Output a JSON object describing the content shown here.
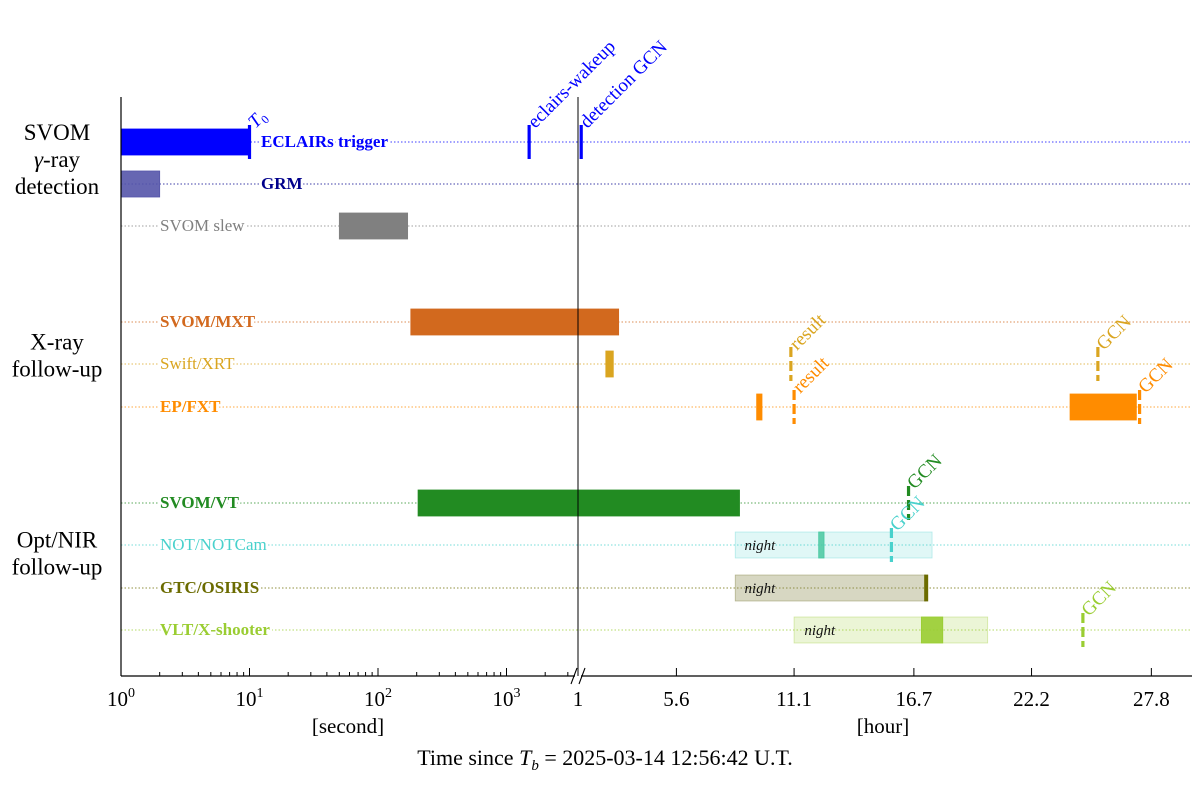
{
  "chart_data": {
    "type": "timeline",
    "xlabel": "Time since T_b = 2025-03-14 12:56:42 U.T.",
    "xlabel_parts": {
      "prefix": "Time since ",
      "symbol": "T",
      "subscript": "b",
      "suffix": " = 2025-03-14 12:56:42 U.T."
    },
    "unit_labels": {
      "seconds": "[second]",
      "hours": "[hour]"
    },
    "axis": {
      "seconds_scale": "log",
      "seconds_range": [
        1,
        3600
      ],
      "seconds_ticks": [
        {
          "value": 1,
          "base": "10",
          "exp": "0"
        },
        {
          "value": 10,
          "base": "10",
          "exp": "1"
        },
        {
          "value": 100,
          "base": "10",
          "exp": "2"
        },
        {
          "value": 1000,
          "base": "10",
          "exp": "3"
        }
      ],
      "hours_scale": "linear",
      "hours_range": [
        1,
        29.7
      ],
      "hours_ticks": [
        {
          "value": 1,
          "label": "1"
        },
        {
          "value": 5.6,
          "label": "5.6"
        },
        {
          "value": 11.1,
          "label": "11.1"
        },
        {
          "value": 16.7,
          "label": "16.7"
        },
        {
          "value": 22.2,
          "label": "22.2"
        },
        {
          "value": 27.8,
          "label": "27.8"
        }
      ]
    },
    "groups": [
      {
        "name": "svom",
        "lines": [
          "SVOM",
          "γ-ray",
          "detection"
        ]
      },
      {
        "name": "xray",
        "lines": [
          "X-ray",
          "follow-up"
        ]
      },
      {
        "name": "optnir",
        "lines": [
          "Opt/NIR",
          "follow-up"
        ]
      }
    ],
    "rows": [
      {
        "name": "eclairs",
        "label": "ECLAIRs trigger",
        "color": "#0000ff"
      },
      {
        "name": "grm",
        "label": "GRM",
        "color": "#00008b"
      },
      {
        "name": "svom-slew",
        "label": "SVOM slew",
        "color": "#808080"
      },
      {
        "name": "svom-mxt",
        "label": "SVOM/MXT",
        "color": "#d2691e"
      },
      {
        "name": "swift-xrt",
        "label": "Swift/XRT",
        "color": "#daa520"
      },
      {
        "name": "ep-fxt",
        "label": "EP/FXT",
        "color": "#ff8c00"
      },
      {
        "name": "svom-vt",
        "label": "SVOM/VT",
        "color": "#228b22"
      },
      {
        "name": "not-notcam",
        "label": "NOT/NOTCam",
        "color": "#48d1cc"
      },
      {
        "name": "gtc-osiris",
        "label": "GTC/OSIRIS",
        "color": "#6b6b00"
      },
      {
        "name": "vlt-xshooter",
        "label": "VLT/X-shooter",
        "color": "#9acd32"
      }
    ],
    "bars": [
      {
        "row": "eclairs",
        "start": {
          "s": 1
        },
        "end": {
          "s": 10
        },
        "color": "#0000ff",
        "opacity": 1
      },
      {
        "row": "grm",
        "start": {
          "s": 1
        },
        "end": {
          "s": 2
        },
        "color": "#5555aa",
        "opacity": 0.9
      },
      {
        "row": "svom-slew",
        "start": {
          "s": 50
        },
        "end": {
          "s": 170
        },
        "color": "#808080",
        "opacity": 1
      },
      {
        "row": "svom-mxt",
        "start": {
          "s": 180
        },
        "end": {
          "h": 2.9
        },
        "color": "#d2691e",
        "opacity": 1
      },
      {
        "row": "swift-xrt",
        "start": {
          "h": 2.3
        },
        "end": {
          "h": 2.65
        },
        "color": "#daa520",
        "opacity": 1
      },
      {
        "row": "ep-fxt",
        "start": {
          "h": 9.35
        },
        "end": {
          "h": 9.6
        },
        "color": "#ff8c00",
        "opacity": 1
      },
      {
        "row": "ep-fxt",
        "start": {
          "h": 24.0
        },
        "end": {
          "h": 27.1
        },
        "color": "#ff8c00",
        "opacity": 1
      },
      {
        "row": "svom-vt",
        "start": {
          "s": 205
        },
        "end": {
          "h": 8.55
        },
        "color": "#228b22",
        "opacity": 1
      },
      {
        "row": "not-notcam",
        "start": {
          "h": 8.35
        },
        "end": {
          "h": 17.55
        },
        "color": "#48d1cc",
        "opacity": 0.17
      },
      {
        "row": "not-notcam",
        "start": {
          "h": 12.25
        },
        "end": {
          "h": 12.5
        },
        "color": "#48c8a0",
        "opacity": 0.85
      },
      {
        "row": "gtc-osiris",
        "start": {
          "h": 8.35
        },
        "end": {
          "h": 17.25
        },
        "color": "#8b8b50",
        "opacity": 0.35
      },
      {
        "row": "gtc-osiris",
        "start": {
          "h": 17.2
        },
        "end": {
          "h": 17.35
        },
        "color": "#6b6b00",
        "opacity": 1
      },
      {
        "row": "vlt-xshooter",
        "start": {
          "h": 11.1
        },
        "end": {
          "h": 20.15
        },
        "color": "#9acd32",
        "opacity": 0.2
      },
      {
        "row": "vlt-xshooter",
        "start": {
          "h": 17.05
        },
        "end": {
          "h": 18.05
        },
        "color": "#9acd32",
        "opacity": 0.9
      }
    ],
    "night_labels": [
      {
        "row": "not-notcam",
        "text": "night",
        "at": {
          "h": 8.5
        }
      },
      {
        "row": "gtc-osiris",
        "text": "night",
        "at": {
          "h": 8.5
        }
      },
      {
        "row": "vlt-xshooter",
        "text": "night",
        "at": {
          "h": 11.3
        }
      }
    ],
    "markers": [
      {
        "name": "t0-marker",
        "row": "eclairs",
        "at": {
          "s": 10
        },
        "dashed": false,
        "color": "#0000ff",
        "label": "",
        "label_symbol": "T",
        "label_sub": "0"
      },
      {
        "name": "eclairs-wakeup-marker",
        "row": "eclairs",
        "at": {
          "s": 1500
        },
        "dashed": false,
        "color": "#0000ff",
        "label": "eclairs-wakeup"
      },
      {
        "name": "detection-gcn-marker",
        "row": "eclairs",
        "at": {
          "h": 1.15
        },
        "dashed": false,
        "color": "#0000ff",
        "label": "detection GCN"
      },
      {
        "name": "swift-result-marker",
        "row": "swift-xrt",
        "at": {
          "h": 10.95
        },
        "dashed": true,
        "color": "#daa520",
        "label": "result"
      },
      {
        "name": "swift-gcn-marker",
        "row": "swift-xrt",
        "at": {
          "h": 25.3
        },
        "dashed": true,
        "color": "#daa520",
        "label": "GCN"
      },
      {
        "name": "ep-result-marker",
        "row": "ep-fxt",
        "at": {
          "h": 11.1
        },
        "dashed": true,
        "color": "#ff8c00",
        "label": "result"
      },
      {
        "name": "ep-gcn-marker",
        "row": "ep-fxt",
        "at": {
          "h": 27.25
        },
        "dashed": true,
        "color": "#ff8c00",
        "label": "GCN"
      },
      {
        "name": "vt-gcn-marker",
        "row": "svom-vt",
        "at": {
          "h": 16.45
        },
        "dashed": true,
        "color": "#228b22",
        "label": "GCN"
      },
      {
        "name": "not-gcn-marker",
        "row": "not-notcam",
        "at": {
          "h": 15.65
        },
        "dashed": true,
        "color": "#48d1cc",
        "label": "GCN"
      },
      {
        "name": "vlt-gcn-marker",
        "row": "vlt-xshooter",
        "at": {
          "h": 24.6
        },
        "dashed": true,
        "color": "#9acd32",
        "label": "GCN"
      }
    ]
  }
}
